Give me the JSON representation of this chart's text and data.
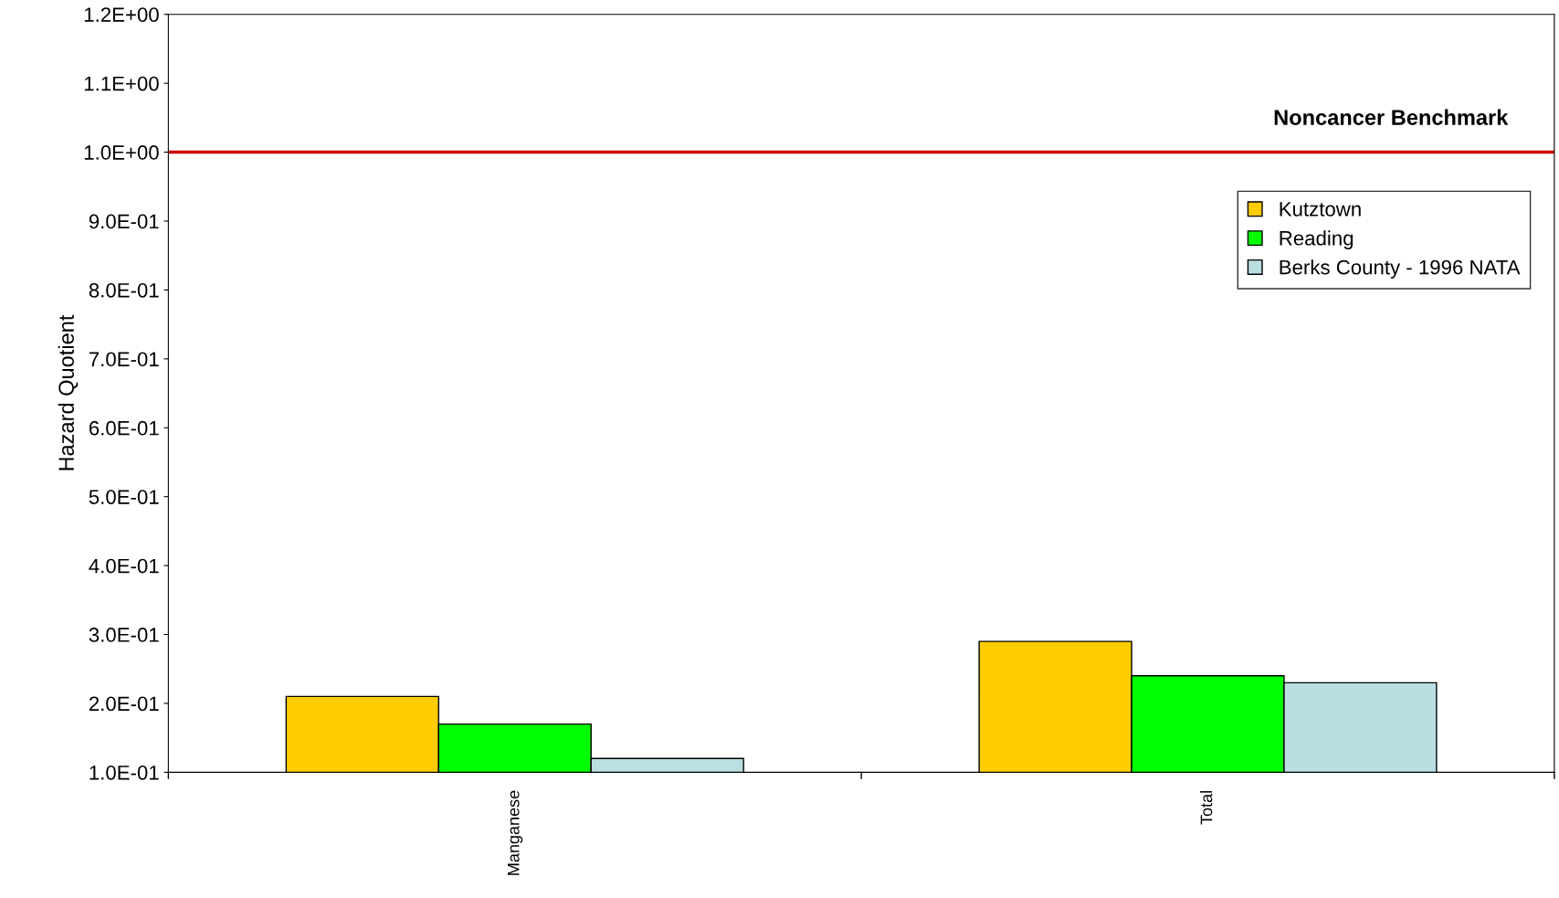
{
  "chart_data": {
    "type": "bar",
    "ylabel": "Hazard Quotient",
    "categories": [
      "Manganese",
      "Total"
    ],
    "series": [
      {
        "name": "Kutztown",
        "color": "#ffcc00",
        "values": [
          0.21,
          0.29
        ]
      },
      {
        "name": "Reading",
        "color": "#00ff00",
        "values": [
          0.17,
          0.24
        ]
      },
      {
        "name": "Berks County - 1996 NATA",
        "color": "#b9dfe3",
        "values": [
          0.12,
          0.23
        ]
      }
    ],
    "ylim": [
      0.1,
      1.2
    ],
    "yticks": [
      {
        "value": 0.1,
        "label": "1.0E-01"
      },
      {
        "value": 0.2,
        "label": "2.0E-01"
      },
      {
        "value": 0.3,
        "label": "3.0E-01"
      },
      {
        "value": 0.4,
        "label": "4.0E-01"
      },
      {
        "value": 0.5,
        "label": "5.0E-01"
      },
      {
        "value": 0.6,
        "label": "6.0E-01"
      },
      {
        "value": 0.7,
        "label": "7.0E-01"
      },
      {
        "value": 0.8,
        "label": "8.0E-01"
      },
      {
        "value": 0.9,
        "label": "9.0E-01"
      },
      {
        "value": 1.0,
        "label": "1.0E+00"
      },
      {
        "value": 1.1,
        "label": "1.1E+00"
      },
      {
        "value": 1.2,
        "label": "1.2E+00"
      }
    ],
    "ref_lines": [
      {
        "axis": "y",
        "value": 1.0,
        "label": "Noncancer Benchmark",
        "color": "#cc0000",
        "line_style": "solid"
      }
    ],
    "grid": false,
    "legend": "top right"
  }
}
